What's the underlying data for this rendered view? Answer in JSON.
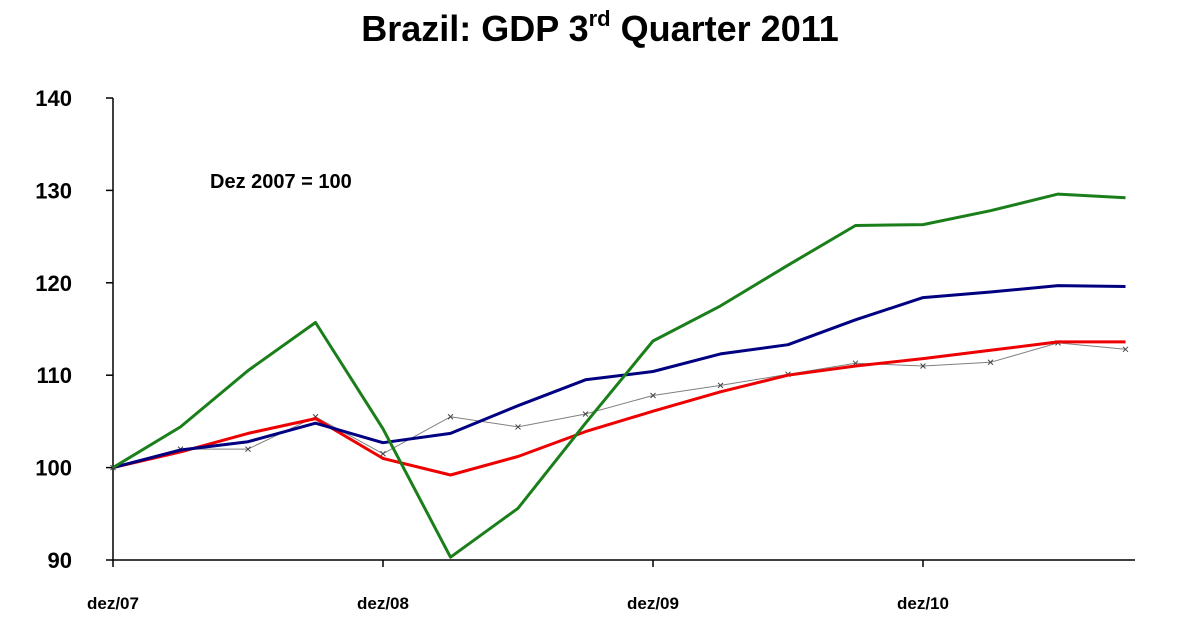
{
  "chart_data": {
    "type": "line",
    "title": {
      "pre": "Brazil: GDP 3",
      "sup": "rd",
      "post": " Quarter 2011"
    },
    "annotation": "Dez 2007 = 100",
    "xlabel": "",
    "ylabel": "",
    "ylim": [
      90,
      140
    ],
    "yticks": [
      90,
      100,
      110,
      120,
      130,
      140
    ],
    "x_quarters": [
      "2007Q4",
      "2008Q1",
      "2008Q2",
      "2008Q3",
      "2008Q4",
      "2009Q1",
      "2009Q2",
      "2009Q3",
      "2009Q4",
      "2010Q1",
      "2010Q2",
      "2010Q3",
      "2010Q4",
      "2011Q1",
      "2011Q2",
      "2011Q3"
    ],
    "xtick_labels": [
      {
        "quarter": "2007Q4",
        "label": "dez/07"
      },
      {
        "quarter": "2008Q4",
        "label": "dez/08"
      },
      {
        "quarter": "2009Q4",
        "label": "dez/09"
      },
      {
        "quarter": "2010Q4",
        "label": "dez/10"
      }
    ],
    "grid": false,
    "legend": "none",
    "series": [
      {
        "color": "#1a7f1a",
        "markers": false,
        "values": [
          100.0,
          104.4,
          110.5,
          115.7,
          104.2,
          90.3,
          95.6,
          104.8,
          113.7,
          117.5,
          121.9,
          126.2,
          126.3,
          127.8,
          129.6,
          129.2
        ]
      },
      {
        "color": "#000080",
        "markers": false,
        "values": [
          100.0,
          101.9,
          102.8,
          104.8,
          102.7,
          103.7,
          106.7,
          109.5,
          110.4,
          112.3,
          113.3,
          116.0,
          118.4,
          119.0,
          119.7,
          119.6
        ]
      },
      {
        "color": "#ee0000",
        "markers": false,
        "values": [
          100.0,
          101.7,
          103.7,
          105.3,
          101.0,
          99.2,
          101.2,
          103.9,
          106.1,
          108.2,
          110.0,
          111.0,
          111.8,
          112.7,
          113.6,
          113.6
        ]
      },
      {
        "color": "#808080",
        "markers": true,
        "values": [
          100.0,
          102.0,
          102.0,
          105.5,
          101.5,
          105.5,
          104.4,
          105.8,
          107.8,
          108.9,
          110.1,
          111.3,
          111.0,
          111.4,
          113.5,
          112.8
        ]
      }
    ]
  }
}
